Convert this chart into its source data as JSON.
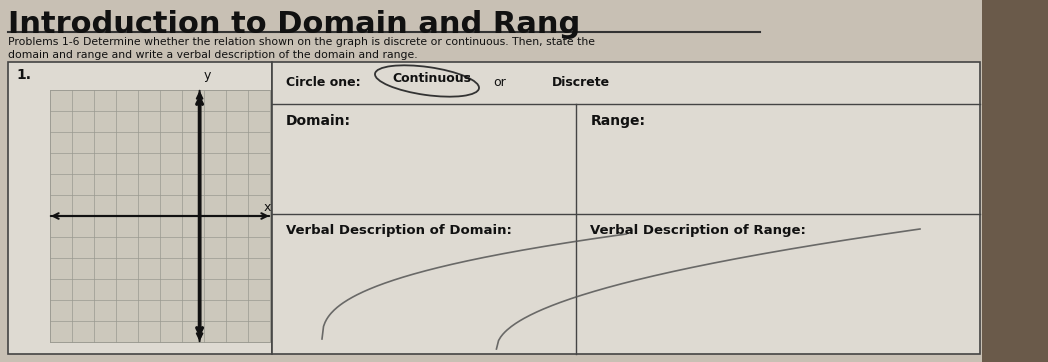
{
  "title": "Introduction to Domain and Rang",
  "problems_text_line1": "Problems 1-6 Determine whether the relation shown on the graph is discrete or continuous. Then, state the",
  "problems_text_line2": "domain and range and write a verbal description of the domain and range.",
  "problem_number": "1.",
  "circle_one_label": "Circle one:",
  "continuous_text": "Continuous",
  "or_text": "or",
  "discrete_text": "Discrete",
  "domain_label": "Domain:",
  "range_label": "Range:",
  "verbal_domain_label": "Verbal Description of Domain:",
  "verbal_range_label": "Verbal Description of Range:",
  "bg_color": "#c8c0b4",
  "paper_color": "#dedad2",
  "grid_bg_color": "#ccc8bc",
  "grid_line_color": "#999990",
  "axis_color": "#111111",
  "text_color": "#111111",
  "table_bg": "#dedad2",
  "border_color": "#444444"
}
